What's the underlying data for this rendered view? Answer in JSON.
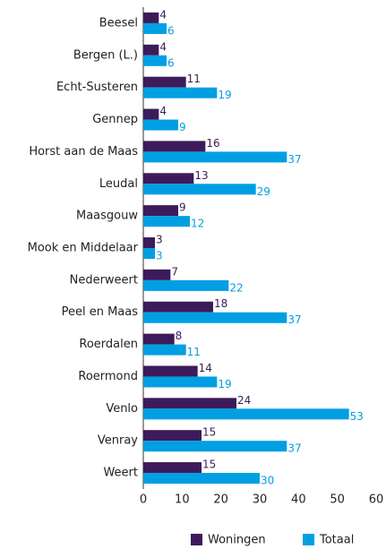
{
  "chart_data": {
    "type": "barh",
    "categories": [
      "Beesel",
      "Bergen (L.)",
      "Echt-Susteren",
      "Gennep",
      "Horst aan de Maas",
      "Leudal",
      "Maasgouw",
      "Mook en Middelaar",
      "Nederweert",
      "Peel en Maas",
      "Roerdalen",
      "Roermond",
      "Venlo",
      "Venray",
      "Weert"
    ],
    "series": [
      {
        "name": "Woningen",
        "color": "#3d1b5b",
        "values": [
          4,
          4,
          11,
          4,
          16,
          13,
          9,
          3,
          7,
          18,
          8,
          14,
          24,
          15,
          15
        ]
      },
      {
        "name": "Totaal",
        "color": "#009fe3",
        "values": [
          6,
          6,
          19,
          9,
          37,
          29,
          12,
          3,
          22,
          37,
          11,
          19,
          53,
          37,
          30
        ]
      }
    ],
    "xlim": [
      0,
      60
    ],
    "xticks": [
      0,
      10,
      20,
      30,
      40,
      50,
      60
    ],
    "legend": "bottom"
  }
}
